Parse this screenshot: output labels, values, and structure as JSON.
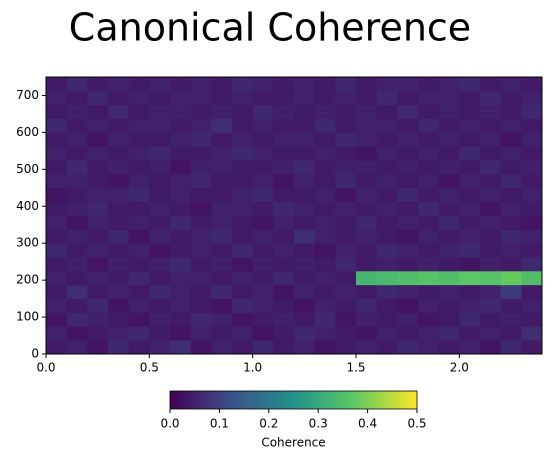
{
  "chart_data": {
    "type": "heatmap",
    "title": "Canonical Coherence",
    "colormap": "viridis",
    "xbins": [
      0,
      0.1,
      0.2,
      0.3,
      0.4,
      0.5,
      0.6,
      0.7,
      0.8,
      0.9,
      1.0,
      1.1,
      1.2,
      1.3,
      1.4,
      1.5,
      1.6,
      1.7,
      1.8,
      1.9,
      2.0,
      2.1,
      2.2,
      2.3,
      2.4
    ],
    "ybins": [
      0,
      37.5,
      75,
      112.5,
      150,
      187.5,
      225,
      262.5,
      300,
      337.5,
      375,
      412.5,
      450,
      487.5,
      525,
      562.5,
      600,
      637.5,
      675,
      712.5,
      750
    ],
    "z": [
      [
        0.04,
        0.05,
        0.03,
        0.06,
        0.04,
        0.05,
        0.07,
        0.03,
        0.05,
        0.04,
        0.06,
        0.04,
        0.05,
        0.03,
        0.04,
        0.05,
        0.04,
        0.06,
        0.05,
        0.04,
        0.05,
        0.03,
        0.06,
        0.04
      ],
      [
        0.05,
        0.03,
        0.04,
        0.05,
        0.06,
        0.04,
        0.03,
        0.05,
        0.04,
        0.05,
        0.03,
        0.04,
        0.06,
        0.05,
        0.04,
        0.03,
        0.05,
        0.04,
        0.05,
        0.06,
        0.04,
        0.05,
        0.04,
        0.07
      ],
      [
        0.03,
        0.06,
        0.05,
        0.04,
        0.03,
        0.05,
        0.04,
        0.06,
        0.05,
        0.03,
        0.04,
        0.05,
        0.04,
        0.06,
        0.03,
        0.05,
        0.04,
        0.05,
        0.03,
        0.04,
        0.06,
        0.04,
        0.05,
        0.04
      ],
      [
        0.05,
        0.04,
        0.06,
        0.03,
        0.05,
        0.04,
        0.05,
        0.04,
        0.03,
        0.06,
        0.05,
        0.04,
        0.03,
        0.05,
        0.04,
        0.06,
        0.04,
        0.03,
        0.05,
        0.04,
        0.05,
        0.06,
        0.04,
        0.05
      ],
      [
        0.04,
        0.07,
        0.04,
        0.05,
        0.04,
        0.06,
        0.05,
        0.04,
        0.06,
        0.04,
        0.05,
        0.03,
        0.05,
        0.04,
        0.05,
        0.04,
        0.06,
        0.05,
        0.04,
        0.05,
        0.04,
        0.05,
        0.09,
        0.04
      ],
      [
        0.05,
        0.04,
        0.05,
        0.04,
        0.06,
        0.04,
        0.05,
        0.05,
        0.04,
        0.05,
        0.04,
        0.06,
        0.04,
        0.05,
        0.04,
        0.33,
        0.34,
        0.35,
        0.36,
        0.35,
        0.37,
        0.36,
        0.38,
        0.35
      ],
      [
        0.04,
        0.05,
        0.03,
        0.05,
        0.04,
        0.05,
        0.06,
        0.04,
        0.05,
        0.03,
        0.05,
        0.04,
        0.05,
        0.04,
        0.06,
        0.04,
        0.05,
        0.04,
        0.05,
        0.04,
        0.03,
        0.05,
        0.04,
        0.06
      ],
      [
        0.06,
        0.04,
        0.05,
        0.04,
        0.05,
        0.03,
        0.04,
        0.05,
        0.04,
        0.06,
        0.04,
        0.05,
        0.04,
        0.03,
        0.05,
        0.04,
        0.06,
        0.05,
        0.04,
        0.05,
        0.06,
        0.04,
        0.05,
        0.04
      ],
      [
        0.04,
        0.05,
        0.04,
        0.06,
        0.03,
        0.05,
        0.04,
        0.05,
        0.06,
        0.04,
        0.05,
        0.04,
        0.07,
        0.05,
        0.04,
        0.05,
        0.04,
        0.03,
        0.05,
        0.04,
        0.05,
        0.04,
        0.06,
        0.05
      ],
      [
        0.05,
        0.03,
        0.05,
        0.04,
        0.05,
        0.04,
        0.06,
        0.04,
        0.05,
        0.04,
        0.03,
        0.05,
        0.04,
        0.05,
        0.04,
        0.06,
        0.04,
        0.05,
        0.04,
        0.06,
        0.04,
        0.05,
        0.04,
        0.03
      ],
      [
        0.04,
        0.05,
        0.06,
        0.04,
        0.04,
        0.05,
        0.04,
        0.03,
        0.05,
        0.05,
        0.04,
        0.06,
        0.05,
        0.04,
        0.05,
        0.04,
        0.05,
        0.04,
        0.06,
        0.04,
        0.05,
        0.03,
        0.05,
        0.04
      ],
      [
        0.03,
        0.04,
        0.05,
        0.05,
        0.06,
        0.04,
        0.05,
        0.04,
        0.04,
        0.05,
        0.06,
        0.04,
        0.04,
        0.05,
        0.03,
        0.05,
        0.04,
        0.06,
        0.04,
        0.05,
        0.04,
        0.05,
        0.04,
        0.05
      ],
      [
        0.05,
        0.05,
        0.04,
        0.03,
        0.05,
        0.04,
        0.05,
        0.06,
        0.04,
        0.04,
        0.05,
        0.03,
        0.05,
        0.04,
        0.06,
        0.04,
        0.05,
        0.04,
        0.05,
        0.03,
        0.05,
        0.04,
        0.06,
        0.04
      ],
      [
        0.04,
        0.06,
        0.04,
        0.05,
        0.04,
        0.05,
        0.03,
        0.05,
        0.05,
        0.04,
        0.04,
        0.05,
        0.06,
        0.04,
        0.05,
        0.05,
        0.04,
        0.05,
        0.04,
        0.05,
        0.04,
        0.06,
        0.04,
        0.05
      ],
      [
        0.05,
        0.04,
        0.05,
        0.04,
        0.05,
        0.06,
        0.04,
        0.04,
        0.05,
        0.06,
        0.05,
        0.04,
        0.04,
        0.05,
        0.04,
        0.03,
        0.05,
        0.04,
        0.05,
        0.04,
        0.06,
        0.04,
        0.05,
        0.04
      ],
      [
        0.04,
        0.05,
        0.03,
        0.05,
        0.04,
        0.04,
        0.05,
        0.06,
        0.04,
        0.05,
        0.04,
        0.05,
        0.05,
        0.04,
        0.06,
        0.05,
        0.04,
        0.05,
        0.04,
        0.05,
        0.04,
        0.05,
        0.03,
        0.05
      ],
      [
        0.06,
        0.04,
        0.05,
        0.04,
        0.05,
        0.05,
        0.04,
        0.05,
        0.07,
        0.04,
        0.05,
        0.04,
        0.04,
        0.06,
        0.04,
        0.05,
        0.05,
        0.04,
        0.06,
        0.04,
        0.05,
        0.04,
        0.05,
        0.04
      ],
      [
        0.04,
        0.05,
        0.04,
        0.06,
        0.04,
        0.05,
        0.05,
        0.04,
        0.05,
        0.04,
        0.06,
        0.05,
        0.04,
        0.05,
        0.04,
        0.05,
        0.04,
        0.06,
        0.04,
        0.05,
        0.04,
        0.05,
        0.04,
        0.06
      ],
      [
        0.05,
        0.04,
        0.06,
        0.04,
        0.05,
        0.04,
        0.05,
        0.05,
        0.04,
        0.05,
        0.04,
        0.04,
        0.05,
        0.04,
        0.05,
        0.04,
        0.06,
        0.04,
        0.05,
        0.05,
        0.04,
        0.06,
        0.04,
        0.05
      ],
      [
        0.04,
        0.06,
        0.04,
        0.05,
        0.04,
        0.05,
        0.04,
        0.05,
        0.04,
        0.06,
        0.05,
        0.04,
        0.05,
        0.04,
        0.06,
        0.04,
        0.05,
        0.05,
        0.04,
        0.05,
        0.06,
        0.04,
        0.05,
        0.04
      ]
    ],
    "xlim": [
      0,
      2.4
    ],
    "xticks": [
      {
        "value": 0,
        "label": "0.0"
      },
      0.5,
      {
        "value": 1,
        "label": "1.0"
      },
      1.5,
      {
        "value": 2,
        "label": "2.0"
      }
    ],
    "ylim": [
      0,
      750
    ],
    "yticks": [
      0,
      100,
      200,
      300,
      400,
      500,
      600,
      700
    ],
    "colorbar": {
      "label": "Coherence",
      "clim": [
        0,
        0.5
      ],
      "ticks": [
        {
          "value": 0,
          "label": "0.0"
        },
        0.1,
        0.2,
        0.3,
        0.4,
        {
          "value": 0.5,
          "label": "0.5"
        }
      ]
    }
  }
}
